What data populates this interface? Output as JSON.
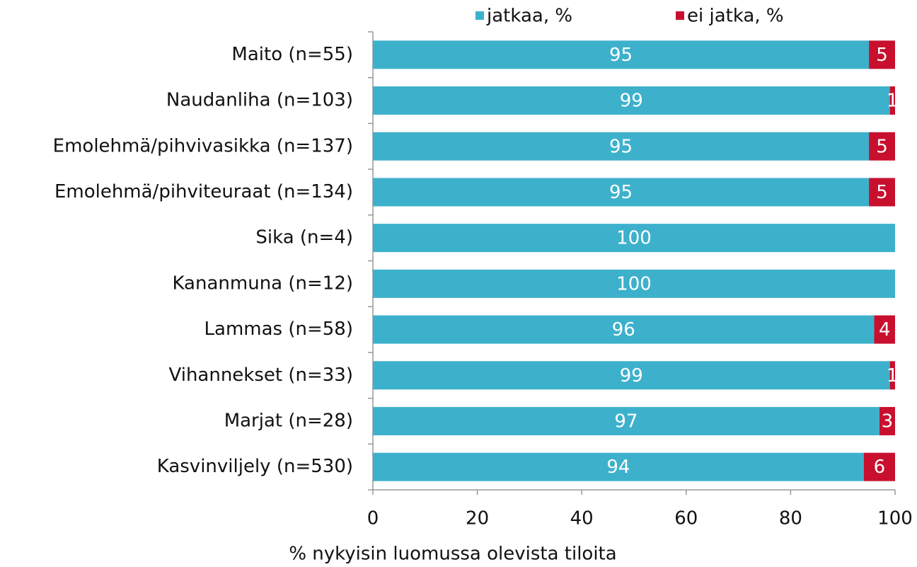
{
  "chart_data": {
    "type": "stacked_barh",
    "x_label": "% nykyisin luomussa olevista tiloita",
    "categories": [
      "Maito (n=55)",
      "Naudanliha (n=103)",
      "Emolehmä/pihvivasikka (n=137)",
      "Emolehmä/pihviteuraat (n=134)",
      "Sika (n=4)",
      "Kananmuna (n=12)",
      "Lammas (n=58)",
      "Vihannekset (n=33)",
      "Marjat (n=28)",
      "Kasvinviljely (n=530)"
    ],
    "series": [
      {
        "name": "jatkaa, %",
        "color": "#3db1cc",
        "values": [
          95,
          99,
          95,
          95,
          100,
          100,
          96,
          99,
          97,
          94
        ]
      },
      {
        "name": "ei jatka, %",
        "color": "#c8102e",
        "values": [
          5,
          1,
          5,
          5,
          null,
          null,
          4,
          1,
          3,
          6
        ]
      }
    ],
    "xlim": [
      0,
      100
    ],
    "xticks": [
      0,
      20,
      40,
      60,
      80,
      100
    ],
    "legend": "top"
  }
}
